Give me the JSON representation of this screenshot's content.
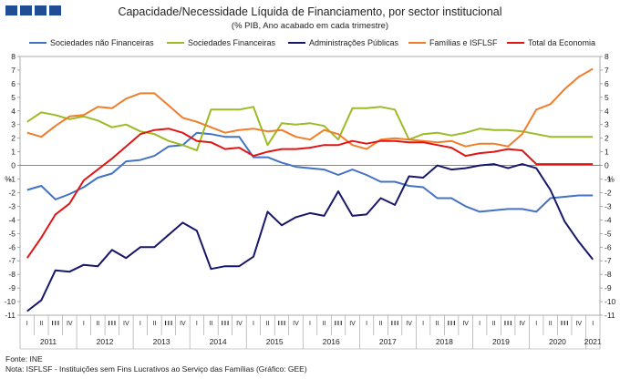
{
  "header": {
    "title": "Capacidade/Necessidade Líquida de Financiamento, por sector institucional",
    "subtitle": "(% PIB, Ano acabado em cada trimestre)"
  },
  "footer": {
    "source": "Fonte: INE",
    "note": "Nota: ISFLSF - Instituições sem Fins Lucrativos ao Serviço das Famílias",
    "note_suffix": "(Gráfico: GEE)"
  },
  "chart_data": {
    "type": "line",
    "title": "Capacidade/Necessidade Líquida de Financiamento, por sector institucional",
    "subtitle": "(% PIB, Ano acabado em cada trimestre)",
    "ylabel_left": "%",
    "ylabel_right": "%",
    "ylim": [
      -11,
      8
    ],
    "yticks": [
      8,
      7,
      6,
      5,
      4,
      3,
      2,
      1,
      0,
      -1,
      -2,
      -3,
      -4,
      -5,
      -6,
      -7,
      -8,
      -9,
      -10,
      -11
    ],
    "quarter_labels": [
      "I",
      "II",
      "III",
      "IV",
      "I",
      "II",
      "III",
      "IV",
      "I",
      "II",
      "III",
      "IV",
      "I",
      "II",
      "III",
      "IV",
      "I",
      "II",
      "III",
      "IV",
      "I",
      "II",
      "III",
      "IV",
      "I",
      "II",
      "III",
      "IV",
      "I",
      "II",
      "III",
      "IV",
      "I",
      "II",
      "III",
      "IV",
      "I",
      "II",
      "III",
      "IV",
      "I"
    ],
    "years": [
      {
        "label": "2011",
        "start": 0,
        "count": 4
      },
      {
        "label": "2012",
        "start": 4,
        "count": 4
      },
      {
        "label": "2013",
        "start": 8,
        "count": 4
      },
      {
        "label": "2014",
        "start": 12,
        "count": 4
      },
      {
        "label": "2015",
        "start": 16,
        "count": 4
      },
      {
        "label": "2016",
        "start": 20,
        "count": 4
      },
      {
        "label": "2017",
        "start": 24,
        "count": 4
      },
      {
        "label": "2018",
        "start": 28,
        "count": 4
      },
      {
        "label": "2019",
        "start": 32,
        "count": 4
      },
      {
        "label": "2020",
        "start": 36,
        "count": 4
      },
      {
        "label": "2021",
        "start": 40,
        "count": 1
      }
    ],
    "series": [
      {
        "name": "Sociedades não Financeiras",
        "color": "#4472c4",
        "values": [
          -1.8,
          -1.5,
          -2.5,
          -2.1,
          -1.6,
          -0.9,
          -0.6,
          0.3,
          0.4,
          0.7,
          1.4,
          1.5,
          2.4,
          2.3,
          2.1,
          2.1,
          0.6,
          0.6,
          0.2,
          -0.1,
          -0.2,
          -0.3,
          -0.7,
          -0.3,
          -0.7,
          -1.2,
          -1.2,
          -1.5,
          -1.6,
          -2.4,
          -2.4,
          -3.0,
          -3.4,
          -3.3,
          -3.2,
          -3.2,
          -3.4,
          -2.4,
          -2.3,
          -2.2,
          -2.2
        ]
      },
      {
        "name": "Sociedades Financeiras",
        "color": "#9bbb27",
        "values": [
          3.2,
          3.9,
          3.7,
          3.4,
          3.6,
          3.3,
          2.8,
          3.0,
          2.5,
          2.3,
          1.8,
          1.5,
          1.1,
          4.1,
          4.1,
          4.1,
          4.3,
          1.5,
          3.1,
          3.0,
          3.1,
          2.9,
          1.9,
          4.2,
          4.2,
          4.3,
          4.1,
          1.9,
          2.3,
          2.4,
          2.2,
          2.4,
          2.7,
          2.6,
          2.6,
          2.5,
          2.3,
          2.1,
          2.1,
          2.1,
          2.1
        ]
      },
      {
        "name": "Administrações Públicas",
        "color": "#17176b",
        "values": [
          -10.7,
          -9.9,
          -7.7,
          -7.8,
          -7.3,
          -7.4,
          -6.2,
          -6.8,
          -6.0,
          -6.0,
          -5.1,
          -4.2,
          -4.8,
          -7.6,
          -7.4,
          -7.4,
          -6.7,
          -3.4,
          -4.4,
          -3.8,
          -3.5,
          -3.7,
          -1.9,
          -3.7,
          -3.6,
          -2.4,
          -2.9,
          -0.8,
          -0.9,
          0.0,
          -0.3,
          -0.2,
          0.0,
          0.1,
          -0.2,
          0.1,
          -0.2,
          -1.8,
          -4.1,
          -5.6,
          -6.9
        ]
      },
      {
        "name": "Famílias e ISFLSF",
        "color": "#f07d2a",
        "values": [
          2.4,
          2.1,
          2.9,
          3.6,
          3.7,
          4.3,
          4.2,
          4.9,
          5.3,
          5.3,
          4.4,
          3.5,
          3.2,
          2.8,
          2.4,
          2.6,
          2.7,
          2.5,
          2.6,
          2.1,
          1.9,
          2.6,
          2.3,
          1.5,
          1.2,
          1.9,
          2.0,
          1.9,
          1.8,
          1.7,
          1.8,
          1.4,
          1.6,
          1.6,
          1.4,
          2.3,
          4.1,
          4.5,
          5.6,
          6.5,
          7.1
        ]
      },
      {
        "name": "Total da Economia",
        "color": "#e01515",
        "values": [
          -6.8,
          -5.3,
          -3.6,
          -2.8,
          -1.1,
          -0.3,
          0.5,
          1.4,
          2.3,
          2.6,
          2.7,
          2.4,
          1.8,
          1.7,
          1.2,
          1.3,
          0.7,
          1.0,
          1.2,
          1.2,
          1.3,
          1.5,
          1.5,
          1.8,
          1.6,
          1.8,
          1.8,
          1.7,
          1.7,
          1.5,
          1.3,
          0.7,
          0.9,
          1.0,
          1.2,
          1.1,
          0.1,
          0.1,
          0.1,
          0.1,
          0.1
        ]
      }
    ]
  }
}
